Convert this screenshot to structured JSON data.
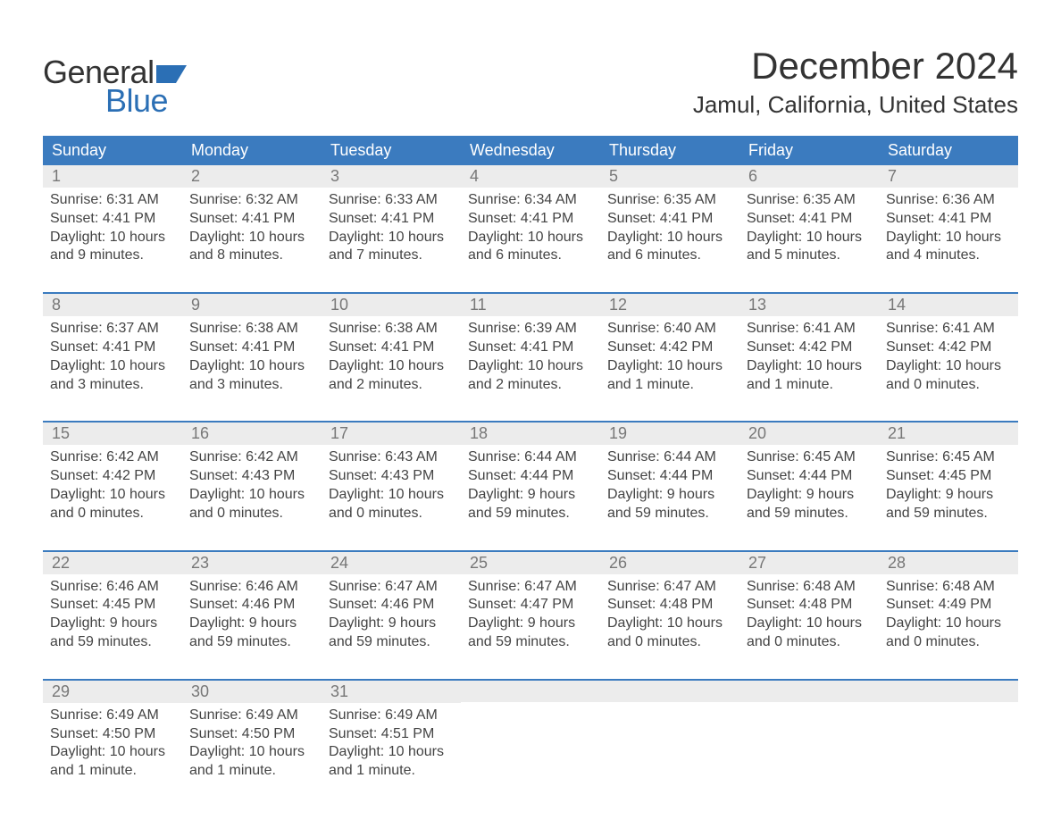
{
  "logo": {
    "text1": "General",
    "text2": "Blue",
    "flag_color": "#2b6fb5",
    "text1_color": "#333333",
    "text2_color": "#2b6fb5"
  },
  "title": "December 2024",
  "location": "Jamul, California, United States",
  "colors": {
    "header_bg": "#3b7bbf",
    "header_text": "#ffffff",
    "daynum_bg": "#ececec",
    "daynum_text": "#777777",
    "body_text": "#444444",
    "divider": "#3b7bbf",
    "background": "#ffffff"
  },
  "typography": {
    "title_fontsize": 42,
    "location_fontsize": 26,
    "header_fontsize": 18,
    "daynum_fontsize": 18,
    "info_fontsize": 16,
    "logo_fontsize": 36
  },
  "day_headers": [
    "Sunday",
    "Monday",
    "Tuesday",
    "Wednesday",
    "Thursday",
    "Friday",
    "Saturday"
  ],
  "weeks": [
    [
      {
        "day": "1",
        "sunrise": "Sunrise: 6:31 AM",
        "sunset": "Sunset: 4:41 PM",
        "dl1": "Daylight: 10 hours",
        "dl2": "and 9 minutes."
      },
      {
        "day": "2",
        "sunrise": "Sunrise: 6:32 AM",
        "sunset": "Sunset: 4:41 PM",
        "dl1": "Daylight: 10 hours",
        "dl2": "and 8 minutes."
      },
      {
        "day": "3",
        "sunrise": "Sunrise: 6:33 AM",
        "sunset": "Sunset: 4:41 PM",
        "dl1": "Daylight: 10 hours",
        "dl2": "and 7 minutes."
      },
      {
        "day": "4",
        "sunrise": "Sunrise: 6:34 AM",
        "sunset": "Sunset: 4:41 PM",
        "dl1": "Daylight: 10 hours",
        "dl2": "and 6 minutes."
      },
      {
        "day": "5",
        "sunrise": "Sunrise: 6:35 AM",
        "sunset": "Sunset: 4:41 PM",
        "dl1": "Daylight: 10 hours",
        "dl2": "and 6 minutes."
      },
      {
        "day": "6",
        "sunrise": "Sunrise: 6:35 AM",
        "sunset": "Sunset: 4:41 PM",
        "dl1": "Daylight: 10 hours",
        "dl2": "and 5 minutes."
      },
      {
        "day": "7",
        "sunrise": "Sunrise: 6:36 AM",
        "sunset": "Sunset: 4:41 PM",
        "dl1": "Daylight: 10 hours",
        "dl2": "and 4 minutes."
      }
    ],
    [
      {
        "day": "8",
        "sunrise": "Sunrise: 6:37 AM",
        "sunset": "Sunset: 4:41 PM",
        "dl1": "Daylight: 10 hours",
        "dl2": "and 3 minutes."
      },
      {
        "day": "9",
        "sunrise": "Sunrise: 6:38 AM",
        "sunset": "Sunset: 4:41 PM",
        "dl1": "Daylight: 10 hours",
        "dl2": "and 3 minutes."
      },
      {
        "day": "10",
        "sunrise": "Sunrise: 6:38 AM",
        "sunset": "Sunset: 4:41 PM",
        "dl1": "Daylight: 10 hours",
        "dl2": "and 2 minutes."
      },
      {
        "day": "11",
        "sunrise": "Sunrise: 6:39 AM",
        "sunset": "Sunset: 4:41 PM",
        "dl1": "Daylight: 10 hours",
        "dl2": "and 2 minutes."
      },
      {
        "day": "12",
        "sunrise": "Sunrise: 6:40 AM",
        "sunset": "Sunset: 4:42 PM",
        "dl1": "Daylight: 10 hours",
        "dl2": "and 1 minute."
      },
      {
        "day": "13",
        "sunrise": "Sunrise: 6:41 AM",
        "sunset": "Sunset: 4:42 PM",
        "dl1": "Daylight: 10 hours",
        "dl2": "and 1 minute."
      },
      {
        "day": "14",
        "sunrise": "Sunrise: 6:41 AM",
        "sunset": "Sunset: 4:42 PM",
        "dl1": "Daylight: 10 hours",
        "dl2": "and 0 minutes."
      }
    ],
    [
      {
        "day": "15",
        "sunrise": "Sunrise: 6:42 AM",
        "sunset": "Sunset: 4:42 PM",
        "dl1": "Daylight: 10 hours",
        "dl2": "and 0 minutes."
      },
      {
        "day": "16",
        "sunrise": "Sunrise: 6:42 AM",
        "sunset": "Sunset: 4:43 PM",
        "dl1": "Daylight: 10 hours",
        "dl2": "and 0 minutes."
      },
      {
        "day": "17",
        "sunrise": "Sunrise: 6:43 AM",
        "sunset": "Sunset: 4:43 PM",
        "dl1": "Daylight: 10 hours",
        "dl2": "and 0 minutes."
      },
      {
        "day": "18",
        "sunrise": "Sunrise: 6:44 AM",
        "sunset": "Sunset: 4:44 PM",
        "dl1": "Daylight: 9 hours",
        "dl2": "and 59 minutes."
      },
      {
        "day": "19",
        "sunrise": "Sunrise: 6:44 AM",
        "sunset": "Sunset: 4:44 PM",
        "dl1": "Daylight: 9 hours",
        "dl2": "and 59 minutes."
      },
      {
        "day": "20",
        "sunrise": "Sunrise: 6:45 AM",
        "sunset": "Sunset: 4:44 PM",
        "dl1": "Daylight: 9 hours",
        "dl2": "and 59 minutes."
      },
      {
        "day": "21",
        "sunrise": "Sunrise: 6:45 AM",
        "sunset": "Sunset: 4:45 PM",
        "dl1": "Daylight: 9 hours",
        "dl2": "and 59 minutes."
      }
    ],
    [
      {
        "day": "22",
        "sunrise": "Sunrise: 6:46 AM",
        "sunset": "Sunset: 4:45 PM",
        "dl1": "Daylight: 9 hours",
        "dl2": "and 59 minutes."
      },
      {
        "day": "23",
        "sunrise": "Sunrise: 6:46 AM",
        "sunset": "Sunset: 4:46 PM",
        "dl1": "Daylight: 9 hours",
        "dl2": "and 59 minutes."
      },
      {
        "day": "24",
        "sunrise": "Sunrise: 6:47 AM",
        "sunset": "Sunset: 4:46 PM",
        "dl1": "Daylight: 9 hours",
        "dl2": "and 59 minutes."
      },
      {
        "day": "25",
        "sunrise": "Sunrise: 6:47 AM",
        "sunset": "Sunset: 4:47 PM",
        "dl1": "Daylight: 9 hours",
        "dl2": "and 59 minutes."
      },
      {
        "day": "26",
        "sunrise": "Sunrise: 6:47 AM",
        "sunset": "Sunset: 4:48 PM",
        "dl1": "Daylight: 10 hours",
        "dl2": "and 0 minutes."
      },
      {
        "day": "27",
        "sunrise": "Sunrise: 6:48 AM",
        "sunset": "Sunset: 4:48 PM",
        "dl1": "Daylight: 10 hours",
        "dl2": "and 0 minutes."
      },
      {
        "day": "28",
        "sunrise": "Sunrise: 6:48 AM",
        "sunset": "Sunset: 4:49 PM",
        "dl1": "Daylight: 10 hours",
        "dl2": "and 0 minutes."
      }
    ],
    [
      {
        "day": "29",
        "sunrise": "Sunrise: 6:49 AM",
        "sunset": "Sunset: 4:50 PM",
        "dl1": "Daylight: 10 hours",
        "dl2": "and 1 minute."
      },
      {
        "day": "30",
        "sunrise": "Sunrise: 6:49 AM",
        "sunset": "Sunset: 4:50 PM",
        "dl1": "Daylight: 10 hours",
        "dl2": "and 1 minute."
      },
      {
        "day": "31",
        "sunrise": "Sunrise: 6:49 AM",
        "sunset": "Sunset: 4:51 PM",
        "dl1": "Daylight: 10 hours",
        "dl2": "and 1 minute."
      },
      null,
      null,
      null,
      null
    ]
  ]
}
